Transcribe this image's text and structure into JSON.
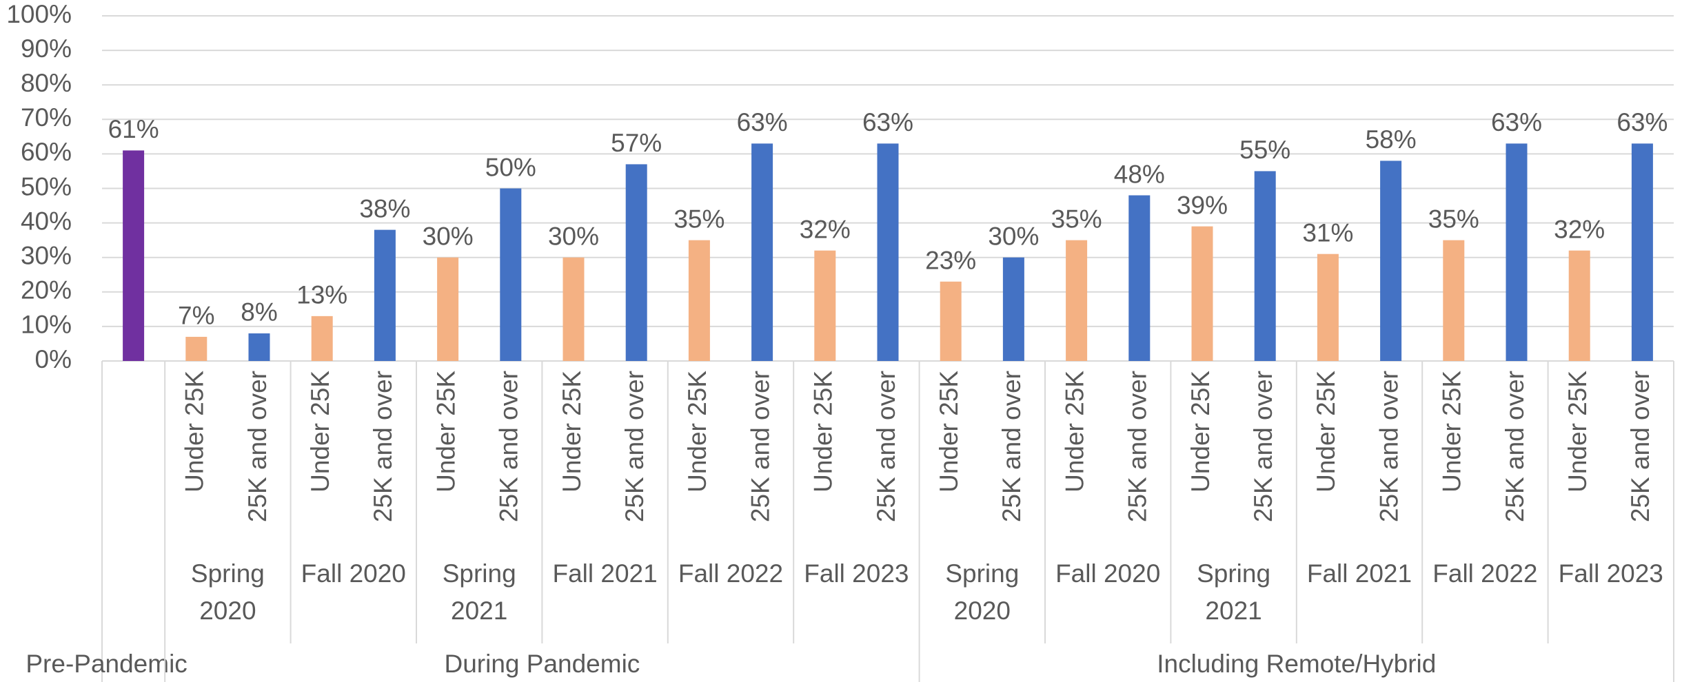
{
  "chart_data": {
    "type": "bar",
    "ylim": [
      0,
      100
    ],
    "yticks": [
      {
        "value": 0,
        "label": "0%"
      },
      {
        "value": 10,
        "label": "10%"
      },
      {
        "value": 20,
        "label": "20%"
      },
      {
        "value": 30,
        "label": "30%"
      },
      {
        "value": 40,
        "label": "40%"
      },
      {
        "value": 50,
        "label": "50%"
      },
      {
        "value": 60,
        "label": "60%"
      },
      {
        "value": 70,
        "label": "70%"
      },
      {
        "value": 80,
        "label": "80%"
      },
      {
        "value": 90,
        "label": "90%"
      },
      {
        "value": 100,
        "label": "100%"
      }
    ],
    "grid": true,
    "groups": [
      {
        "name": "Pre-Pandemic",
        "periods": [
          {
            "name": null,
            "categories": [
              null
            ],
            "values": [
              61
            ],
            "value_labels": [
              "61%"
            ],
            "colors": [
              "#7030a0"
            ]
          }
        ]
      },
      {
        "name": "During Pandemic",
        "periods": [
          {
            "name": "Spring 2020",
            "categories": [
              "Under 25K",
              "25K and over"
            ],
            "values": [
              7,
              8
            ],
            "value_labels": [
              "7%",
              "8%"
            ],
            "colors": [
              "#f4b183",
              "#4472c4"
            ]
          },
          {
            "name": "Fall 2020",
            "categories": [
              "Under 25K",
              "25K and over"
            ],
            "values": [
              13,
              38
            ],
            "value_labels": [
              "13%",
              "38%"
            ],
            "colors": [
              "#f4b183",
              "#4472c4"
            ]
          },
          {
            "name": "Spring 2021",
            "categories": [
              "Under 25K",
              "25K and over"
            ],
            "values": [
              30,
              50
            ],
            "value_labels": [
              "30%",
              "50%"
            ],
            "colors": [
              "#f4b183",
              "#4472c4"
            ]
          },
          {
            "name": "Fall 2021",
            "categories": [
              "Under 25K",
              "25K and over"
            ],
            "values": [
              30,
              57
            ],
            "value_labels": [
              "30%",
              "57%"
            ],
            "colors": [
              "#f4b183",
              "#4472c4"
            ]
          },
          {
            "name": "Fall 2022",
            "categories": [
              "Under 25K",
              "25K and over"
            ],
            "values": [
              35,
              63
            ],
            "value_labels": [
              "35%",
              "63%"
            ],
            "colors": [
              "#f4b183",
              "#4472c4"
            ]
          },
          {
            "name": "Fall 2023",
            "categories": [
              "Under 25K",
              "25K and over"
            ],
            "values": [
              32,
              63
            ],
            "value_labels": [
              "32%",
              "63%"
            ],
            "colors": [
              "#f4b183",
              "#4472c4"
            ]
          }
        ]
      },
      {
        "name": "Including Remote/Hybrid",
        "periods": [
          {
            "name": "Spring 2020",
            "categories": [
              "Under 25K",
              "25K and over"
            ],
            "values": [
              23,
              30
            ],
            "value_labels": [
              "23%",
              "30%"
            ],
            "colors": [
              "#f4b183",
              "#4472c4"
            ]
          },
          {
            "name": "Fall 2020",
            "categories": [
              "Under 25K",
              "25K and over"
            ],
            "values": [
              35,
              48
            ],
            "value_labels": [
              "35%",
              "48%"
            ],
            "colors": [
              "#f4b183",
              "#4472c4"
            ]
          },
          {
            "name": "Spring 2021",
            "categories": [
              "Under 25K",
              "25K and over"
            ],
            "values": [
              39,
              55
            ],
            "value_labels": [
              "39%",
              "55%"
            ],
            "colors": [
              "#f4b183",
              "#4472c4"
            ]
          },
          {
            "name": "Fall 2021",
            "categories": [
              "Under 25K",
              "25K and over"
            ],
            "values": [
              31,
              58
            ],
            "value_labels": [
              "31%",
              "58%"
            ],
            "colors": [
              "#f4b183",
              "#4472c4"
            ]
          },
          {
            "name": "Fall 2022",
            "categories": [
              "Under 25K",
              "25K and over"
            ],
            "values": [
              35,
              63
            ],
            "value_labels": [
              "35%",
              "63%"
            ],
            "colors": [
              "#f4b183",
              "#4472c4"
            ]
          },
          {
            "name": "Fall 2023",
            "categories": [
              "Under 25K",
              "25K and over"
            ],
            "values": [
              32,
              63
            ],
            "value_labels": [
              "32%",
              "63%"
            ],
            "colors": [
              "#f4b183",
              "#4472c4"
            ]
          }
        ]
      }
    ]
  }
}
